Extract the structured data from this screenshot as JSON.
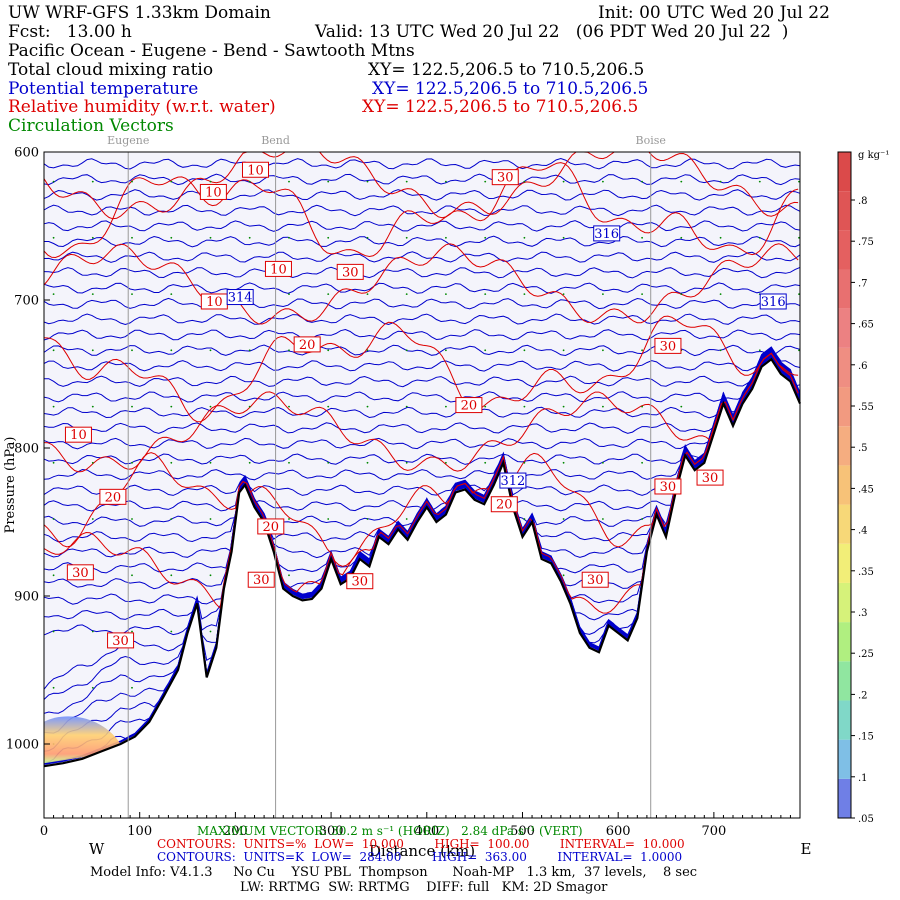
{
  "header": {
    "model": "UW WRF-GFS 1.33km Domain",
    "init": "Init: 00 UTC Wed 20 Jul 22",
    "fcst": "Fcst:   13.00 h",
    "valid": "Valid: 13 UTC Wed 20 Jul 22   (06 PDT Wed 20 Jul 22  )",
    "section": "Pacific Ocean - Eugene - Bend - Sawtooth Mtns",
    "fields": [
      {
        "name": "Total cloud mixing ratio",
        "xy": "XY= 122.5,206.5 to 710.5,206.5",
        "color": "#000000"
      },
      {
        "name": "Potential temperature",
        "xy": "XY= 122.5,206.5 to 710.5,206.5",
        "color": "#0000cc"
      },
      {
        "name": "Relative humidity (w.r.t. water)",
        "xy": "XY= 122.5,206.5 to 710.5,206.5",
        "color": "#dd0000"
      },
      {
        "name": "Circulation Vectors",
        "xy": "",
        "color": "#008800"
      }
    ]
  },
  "chart_data": {
    "type": "cross-section",
    "xlabel": "Distance (km)",
    "ylabel": "Pressure (hPa)",
    "xlim": [
      0,
      790
    ],
    "ylim": [
      1050,
      600
    ],
    "x_ticks": [
      0,
      100,
      200,
      300,
      400,
      500,
      600,
      700
    ],
    "y_ticks": [
      600,
      700,
      800,
      900,
      1000
    ],
    "y_tick_labels": [
      "600",
      "700",
      "800",
      "900",
      "1000"
    ],
    "left_end_label": "W",
    "right_end_label": "E",
    "locations": [
      {
        "name": "Eugene",
        "x": 88
      },
      {
        "name": "Bend",
        "x": 242
      },
      {
        "name": "Boise",
        "x": 634
      }
    ],
    "terrain_pressure": {
      "x": [
        0,
        20,
        40,
        60,
        80,
        95,
        110,
        125,
        140,
        150,
        160,
        170,
        180,
        188,
        196,
        204,
        210,
        220,
        230,
        240,
        250,
        260,
        270,
        280,
        290,
        300,
        310,
        320,
        330,
        340,
        350,
        360,
        370,
        380,
        390,
        400,
        410,
        420,
        430,
        440,
        450,
        460,
        470,
        480,
        490,
        500,
        510,
        520,
        530,
        540,
        550,
        560,
        570,
        580,
        590,
        600,
        610,
        620,
        630,
        640,
        650,
        660,
        670,
        680,
        690,
        700,
        710,
        720,
        730,
        740,
        750,
        760,
        770,
        780,
        790
      ],
      "p": [
        1015,
        1013,
        1010,
        1005,
        1000,
        995,
        985,
        968,
        950,
        925,
        905,
        955,
        935,
        895,
        870,
        830,
        825,
        840,
        850,
        870,
        895,
        900,
        903,
        902,
        895,
        875,
        892,
        888,
        875,
        880,
        860,
        865,
        855,
        862,
        850,
        840,
        850,
        845,
        830,
        828,
        835,
        838,
        825,
        810,
        840,
        860,
        850,
        875,
        878,
        890,
        905,
        925,
        935,
        938,
        920,
        925,
        930,
        915,
        870,
        845,
        860,
        830,
        805,
        815,
        810,
        790,
        770,
        785,
        770,
        760,
        745,
        740,
        750,
        755,
        770
      ]
    },
    "theta_contours_K": {
      "low": 284.0,
      "high": 363.0,
      "interval": 1.0,
      "labeled": [
        312,
        314,
        316
      ]
    },
    "rh_contours_pct": {
      "low": 10.0,
      "high": 100.0,
      "interval": 10.0,
      "labeled": [
        10,
        20,
        30
      ]
    },
    "colorbar": {
      "title": "g kg⁻¹",
      "ticks": [
        ".8",
        ".75",
        ".7",
        ".65",
        ".6",
        ".55",
        ".5",
        ".45",
        ".4",
        ".35",
        ".3",
        ".25",
        ".2",
        ".15",
        ".1",
        ".05"
      ]
    },
    "theta_labels": [
      {
        "text": "314",
        "x": 205,
        "p": 698
      },
      {
        "text": "316",
        "x": 588,
        "p": 655
      },
      {
        "text": "312",
        "x": 490,
        "p": 822
      },
      {
        "text": "316",
        "x": 762,
        "p": 701
      }
    ],
    "rh_labels": [
      {
        "text": "10",
        "x": 221,
        "p": 612
      },
      {
        "text": "10",
        "x": 177,
        "p": 627
      },
      {
        "text": "10",
        "x": 245,
        "p": 679
      },
      {
        "text": "30",
        "x": 482,
        "p": 617
      },
      {
        "text": "30",
        "x": 320,
        "p": 681
      },
      {
        "text": "10",
        "x": 178,
        "p": 701
      },
      {
        "text": "20",
        "x": 275,
        "p": 730
      },
      {
        "text": "30",
        "x": 652,
        "p": 731
      },
      {
        "text": "20",
        "x": 444,
        "p": 771
      },
      {
        "text": "10",
        "x": 36,
        "p": 791
      },
      {
        "text": "20",
        "x": 72,
        "p": 833
      },
      {
        "text": "30",
        "x": 652,
        "p": 826
      },
      {
        "text": "30",
        "x": 696,
        "p": 820
      },
      {
        "text": "20",
        "x": 481,
        "p": 838
      },
      {
        "text": "20",
        "x": 237,
        "p": 853
      },
      {
        "text": "30",
        "x": 38,
        "p": 884
      },
      {
        "text": "30",
        "x": 227,
        "p": 889
      },
      {
        "text": "30",
        "x": 330,
        "p": 890
      },
      {
        "text": "30",
        "x": 576,
        "p": 889
      },
      {
        "text": "30",
        "x": 80,
        "p": 930
      }
    ]
  },
  "footer": {
    "max_vector": "MAXIMUM VECTOR: 30.2 m s⁻¹ (HORIZ)   2.84 dPa s⁻¹ (VERT)",
    "rh_contours": "CONTOURS:  UNITS=%  LOW=  10.000        HIGH=  100.00        INTERVAL=  10.000",
    "theta_contours": "CONTOURS:  UNITS=K  LOW=  284.00        HIGH=  363.00        INTERVAL=  1.0000",
    "model_info": "Model Info: V4.1.3     No Cu    YSU PBL  Thompson      Noah-MP   1.3 km,  37 levels,    8 sec",
    "physics": "LW: RRTMG  SW: RRTMG    DIFF: full   KM: 2D Smagor"
  },
  "colors": {
    "theta": "#0000cc",
    "rh": "#dd0000",
    "terrain": "#000000",
    "vectors": "#008800",
    "background": "#f4f4fb"
  }
}
